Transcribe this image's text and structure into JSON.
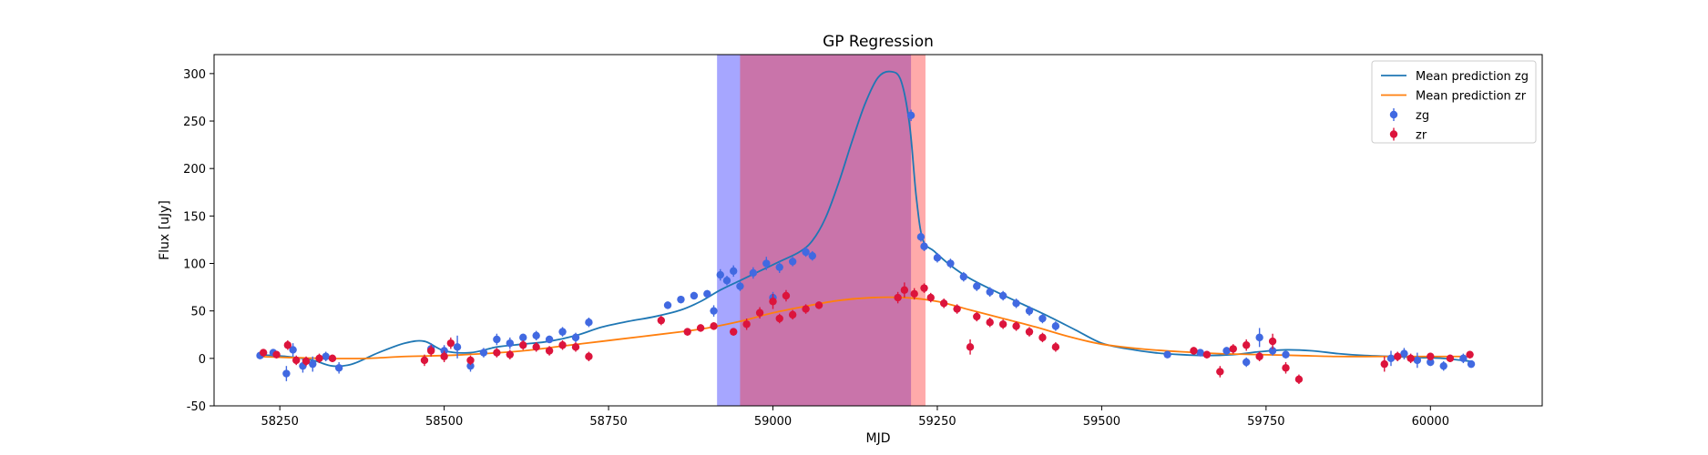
{
  "chart_data": {
    "type": "scatter",
    "title": "GP Regression",
    "xlabel": "MJD",
    "ylabel": "Flux [uJy]",
    "xlim": [
      58150,
      60170
    ],
    "ylim": [
      -50,
      320
    ],
    "xticks": [
      58250,
      58500,
      58750,
      59000,
      59250,
      59500,
      59750,
      60000
    ],
    "yticks": [
      -50,
      0,
      50,
      100,
      150,
      200,
      250,
      300
    ],
    "grid": false,
    "legend_position": "top-right",
    "shaded_regions": [
      {
        "x0": 58915,
        "x1": 59210,
        "color": "#0000ff",
        "opacity": 0.35
      },
      {
        "x0": 58950,
        "x1": 59232,
        "color": "#ff2a2a",
        "opacity": 0.4
      }
    ],
    "series": [
      {
        "name": "Mean prediction zg",
        "kind": "line",
        "color": "#1f77b4",
        "points": [
          [
            58215,
            4
          ],
          [
            58260,
            2
          ],
          [
            58300,
            -2
          ],
          [
            58330,
            -8
          ],
          [
            58360,
            -6
          ],
          [
            58400,
            6
          ],
          [
            58440,
            16
          ],
          [
            58470,
            18
          ],
          [
            58500,
            8
          ],
          [
            58540,
            6
          ],
          [
            58580,
            12
          ],
          [
            58620,
            15
          ],
          [
            58660,
            18
          ],
          [
            58700,
            24
          ],
          [
            58740,
            33
          ],
          [
            58780,
            39
          ],
          [
            58820,
            44
          ],
          [
            58860,
            51
          ],
          [
            58890,
            60
          ],
          [
            58920,
            72
          ],
          [
            58950,
            82
          ],
          [
            58980,
            92
          ],
          [
            59010,
            102
          ],
          [
            59040,
            112
          ],
          [
            59060,
            124
          ],
          [
            59080,
            148
          ],
          [
            59100,
            185
          ],
          [
            59120,
            228
          ],
          [
            59140,
            268
          ],
          [
            59160,
            296
          ],
          [
            59180,
            302
          ],
          [
            59195,
            292
          ],
          [
            59208,
            245
          ],
          [
            59218,
            170
          ],
          [
            59228,
            125
          ],
          [
            59245,
            113
          ],
          [
            59270,
            98
          ],
          [
            59300,
            84
          ],
          [
            59340,
            70
          ],
          [
            59380,
            57
          ],
          [
            59420,
            44
          ],
          [
            59460,
            30
          ],
          [
            59500,
            16
          ],
          [
            59540,
            10
          ],
          [
            59580,
            6
          ],
          [
            59620,
            4
          ],
          [
            59660,
            3
          ],
          [
            59700,
            4
          ],
          [
            59740,
            7
          ],
          [
            59780,
            9
          ],
          [
            59820,
            8
          ],
          [
            59860,
            5
          ],
          [
            59900,
            3
          ],
          [
            59940,
            2
          ],
          [
            59980,
            1
          ],
          [
            60020,
            0
          ],
          [
            60060,
            -3
          ]
        ]
      },
      {
        "name": "Mean prediction zr",
        "kind": "line",
        "color": "#ff7f0e",
        "points": [
          [
            58215,
            2
          ],
          [
            58260,
            1
          ],
          [
            58320,
            0
          ],
          [
            58380,
            0
          ],
          [
            58440,
            2
          ],
          [
            58500,
            3
          ],
          [
            58560,
            5
          ],
          [
            58620,
            8
          ],
          [
            58680,
            13
          ],
          [
            58740,
            18
          ],
          [
            58800,
            23
          ],
          [
            58860,
            28
          ],
          [
            58900,
            32
          ],
          [
            58950,
            39
          ],
          [
            59000,
            48
          ],
          [
            59050,
            55
          ],
          [
            59100,
            61
          ],
          [
            59150,
            64
          ],
          [
            59200,
            64
          ],
          [
            59250,
            60
          ],
          [
            59300,
            51
          ],
          [
            59350,
            42
          ],
          [
            59400,
            33
          ],
          [
            59450,
            23
          ],
          [
            59500,
            15
          ],
          [
            59560,
            10
          ],
          [
            59620,
            7
          ],
          [
            59680,
            5
          ],
          [
            59740,
            4
          ],
          [
            59800,
            3
          ],
          [
            59860,
            2
          ],
          [
            59920,
            2
          ],
          [
            59980,
            2
          ],
          [
            60060,
            2
          ]
        ]
      },
      {
        "name": "zg",
        "kind": "errorbar",
        "color": "#4169e1",
        "points": [
          [
            58220,
            3,
            3
          ],
          [
            58240,
            6,
            4
          ],
          [
            58260,
            -16,
            8
          ],
          [
            58270,
            9,
            7
          ],
          [
            58285,
            -8,
            7
          ],
          [
            58300,
            -6,
            8
          ],
          [
            58320,
            2,
            5
          ],
          [
            58340,
            -10,
            6
          ],
          [
            58480,
            10,
            6
          ],
          [
            58500,
            8,
            6
          ],
          [
            58520,
            12,
            12
          ],
          [
            58540,
            -8,
            6
          ],
          [
            58560,
            6,
            5
          ],
          [
            58580,
            20,
            6
          ],
          [
            58600,
            16,
            6
          ],
          [
            58620,
            22,
            4
          ],
          [
            58640,
            24,
            5
          ],
          [
            58660,
            20,
            4
          ],
          [
            58680,
            28,
            5
          ],
          [
            58700,
            22,
            5
          ],
          [
            58720,
            38,
            5
          ],
          [
            58840,
            56,
            4
          ],
          [
            58860,
            62,
            4
          ],
          [
            58880,
            66,
            4
          ],
          [
            58900,
            68,
            4
          ],
          [
            58910,
            50,
            6
          ],
          [
            58920,
            88,
            6
          ],
          [
            58930,
            82,
            5
          ],
          [
            58940,
            92,
            6
          ],
          [
            58950,
            76,
            5
          ],
          [
            58970,
            90,
            6
          ],
          [
            58990,
            100,
            7
          ],
          [
            59000,
            64,
            6
          ],
          [
            59010,
            96,
            6
          ],
          [
            59030,
            102,
            5
          ],
          [
            59050,
            112,
            5
          ],
          [
            59060,
            108,
            5
          ],
          [
            59210,
            256,
            6
          ],
          [
            59225,
            128,
            5
          ],
          [
            59230,
            118,
            5
          ],
          [
            59250,
            106,
            5
          ],
          [
            59270,
            100,
            5
          ],
          [
            59290,
            86,
            5
          ],
          [
            59310,
            76,
            5
          ],
          [
            59330,
            70,
            5
          ],
          [
            59350,
            66,
            5
          ],
          [
            59370,
            58,
            5
          ],
          [
            59390,
            50,
            5
          ],
          [
            59410,
            42,
            5
          ],
          [
            59430,
            34,
            5
          ],
          [
            59600,
            4,
            3
          ],
          [
            59650,
            6,
            3
          ],
          [
            59690,
            8,
            4
          ],
          [
            59720,
            -4,
            5
          ],
          [
            59740,
            22,
            10
          ],
          [
            59760,
            8,
            5
          ],
          [
            59780,
            4,
            4
          ],
          [
            59940,
            0,
            8
          ],
          [
            59960,
            5,
            6
          ],
          [
            59980,
            -2,
            8
          ],
          [
            60000,
            -4,
            4
          ],
          [
            60020,
            -8,
            5
          ],
          [
            60050,
            0,
            5
          ],
          [
            60062,
            -6,
            4
          ]
        ]
      },
      {
        "name": "zr",
        "kind": "errorbar",
        "color": "#dc143c",
        "points": [
          [
            58225,
            6,
            4
          ],
          [
            58245,
            4,
            4
          ],
          [
            58262,
            14,
            5
          ],
          [
            58275,
            -2,
            5
          ],
          [
            58290,
            -3,
            5
          ],
          [
            58310,
            0,
            5
          ],
          [
            58330,
            0,
            4
          ],
          [
            58470,
            -2,
            6
          ],
          [
            58480,
            8,
            6
          ],
          [
            58500,
            2,
            6
          ],
          [
            58510,
            16,
            6
          ],
          [
            58540,
            -2,
            5
          ],
          [
            58580,
            6,
            5
          ],
          [
            58600,
            4,
            5
          ],
          [
            58620,
            14,
            5
          ],
          [
            58640,
            12,
            5
          ],
          [
            58660,
            8,
            5
          ],
          [
            58680,
            14,
            5
          ],
          [
            58700,
            12,
            5
          ],
          [
            58720,
            2,
            5
          ],
          [
            58830,
            40,
            5
          ],
          [
            58870,
            28,
            4
          ],
          [
            58890,
            32,
            4
          ],
          [
            58910,
            34,
            4
          ],
          [
            58940,
            28,
            4
          ],
          [
            58960,
            36,
            6
          ],
          [
            58980,
            48,
            6
          ],
          [
            59000,
            60,
            8
          ],
          [
            59010,
            42,
            5
          ],
          [
            59020,
            66,
            6
          ],
          [
            59030,
            46,
            5
          ],
          [
            59050,
            52,
            5
          ],
          [
            59070,
            56,
            4
          ],
          [
            59190,
            64,
            6
          ],
          [
            59200,
            72,
            8
          ],
          [
            59215,
            68,
            6
          ],
          [
            59230,
            74,
            5
          ],
          [
            59240,
            64,
            5
          ],
          [
            59260,
            58,
            5
          ],
          [
            59280,
            52,
            5
          ],
          [
            59300,
            12,
            8
          ],
          [
            59310,
            44,
            5
          ],
          [
            59330,
            38,
            5
          ],
          [
            59350,
            36,
            5
          ],
          [
            59370,
            34,
            5
          ],
          [
            59390,
            28,
            5
          ],
          [
            59410,
            22,
            5
          ],
          [
            59430,
            12,
            5
          ],
          [
            59640,
            8,
            4
          ],
          [
            59660,
            4,
            4
          ],
          [
            59680,
            -14,
            6
          ],
          [
            59700,
            10,
            5
          ],
          [
            59720,
            14,
            6
          ],
          [
            59740,
            2,
            5
          ],
          [
            59760,
            18,
            8
          ],
          [
            59780,
            -10,
            6
          ],
          [
            59800,
            -22,
            5
          ],
          [
            59930,
            -6,
            8
          ],
          [
            59950,
            2,
            5
          ],
          [
            59970,
            0,
            5
          ],
          [
            60000,
            2,
            4
          ],
          [
            60030,
            0,
            4
          ],
          [
            60060,
            4,
            4
          ]
        ]
      }
    ]
  }
}
